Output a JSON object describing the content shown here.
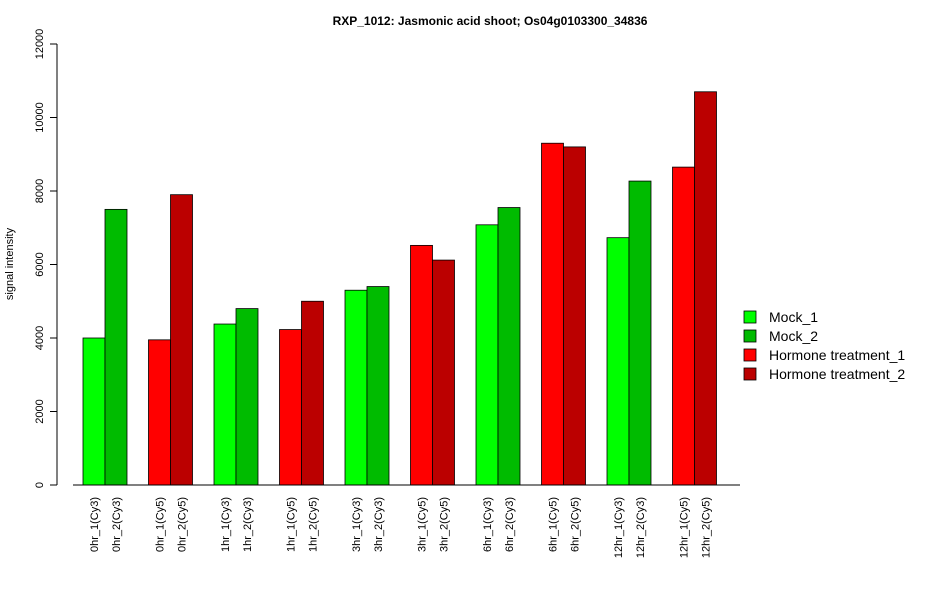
{
  "chart_data": {
    "type": "bar",
    "title": "RXP_1012: Jasmonic acid shoot; Os04g0103300_34836",
    "xlabel": "",
    "ylabel": "signal intensity",
    "ylim": [
      0,
      12000
    ],
    "yticks": [
      0,
      2000,
      4000,
      6000,
      8000,
      10000,
      12000
    ],
    "legend_position": "right",
    "series": [
      {
        "name": "Mock_1",
        "color": "#00ff00"
      },
      {
        "name": "Mock_2",
        "color": "#00bb00"
      },
      {
        "name": "Hormone treatment_1",
        "color": "#ff0000"
      },
      {
        "name": "Hormone treatment_2",
        "color": "#bb0000"
      }
    ],
    "groups": [
      {
        "bars": [
          {
            "label": "0hr_1(Cy3)",
            "value": 4000,
            "series": 0
          },
          {
            "label": "0hr_2(Cy3)",
            "value": 7500,
            "series": 1
          }
        ]
      },
      {
        "bars": [
          {
            "label": "0hr_1(Cy5)",
            "value": 3950,
            "series": 2
          },
          {
            "label": "0hr_2(Cy5)",
            "value": 7900,
            "series": 3
          }
        ]
      },
      {
        "bars": [
          {
            "label": "1hr_1(Cy3)",
            "value": 4380,
            "series": 0
          },
          {
            "label": "1hr_2(Cy3)",
            "value": 4800,
            "series": 1
          }
        ]
      },
      {
        "bars": [
          {
            "label": "1hr_1(Cy5)",
            "value": 4230,
            "series": 2
          },
          {
            "label": "1hr_2(Cy5)",
            "value": 5000,
            "series": 3
          }
        ]
      },
      {
        "bars": [
          {
            "label": "3hr_1(Cy3)",
            "value": 5300,
            "series": 0
          },
          {
            "label": "3hr_2(Cy3)",
            "value": 5400,
            "series": 1
          }
        ]
      },
      {
        "bars": [
          {
            "label": "3hr_1(Cy5)",
            "value": 6520,
            "series": 2
          },
          {
            "label": "3hr_2(Cy5)",
            "value": 6120,
            "series": 3
          }
        ]
      },
      {
        "bars": [
          {
            "label": "6hr_1(Cy3)",
            "value": 7080,
            "series": 0
          },
          {
            "label": "6hr_2(Cy3)",
            "value": 7550,
            "series": 1
          }
        ]
      },
      {
        "bars": [
          {
            "label": "6hr_1(Cy5)",
            "value": 9300,
            "series": 2
          },
          {
            "label": "6hr_2(Cy5)",
            "value": 9200,
            "series": 3
          }
        ]
      },
      {
        "bars": [
          {
            "label": "12hr_1(Cy3)",
            "value": 6730,
            "series": 0
          },
          {
            "label": "12hr_2(Cy3)",
            "value": 8270,
            "series": 1
          }
        ]
      },
      {
        "bars": [
          {
            "label": "12hr_1(Cy5)",
            "value": 8650,
            "series": 2
          },
          {
            "label": "12hr_2(Cy5)",
            "value": 10700,
            "series": 3
          }
        ]
      }
    ]
  }
}
